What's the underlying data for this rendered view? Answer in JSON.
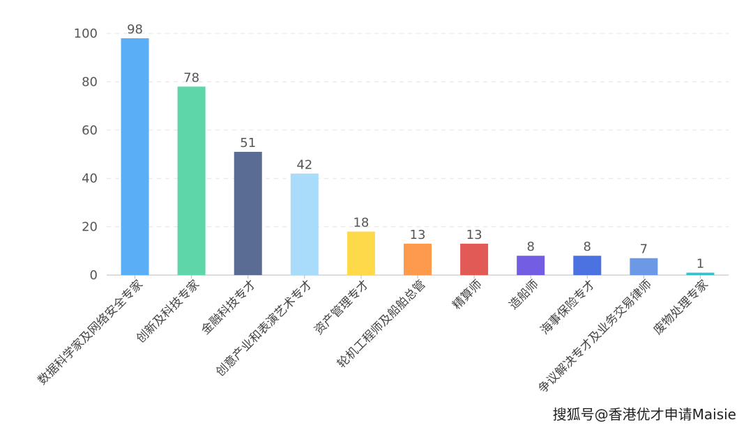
{
  "chart_data": {
    "type": "bar",
    "categories": [
      "数据科学家及网络安全专家",
      "创新及科技专家",
      "金融科技专才",
      "创意产业和表演艺术专才",
      "资产管理专才",
      "轮机工程师及船舶总管",
      "精算师",
      "造船师",
      "海事保险专才",
      "争议解决专才及业务交易律师",
      "废物处理专家"
    ],
    "values": [
      98,
      78,
      51,
      42,
      18,
      13,
      13,
      8,
      8,
      7,
      1
    ],
    "colors": [
      "#5aaef5",
      "#5fd6a9",
      "#5a6b94",
      "#a8dcfa",
      "#fed949",
      "#fd9a4e",
      "#e15a55",
      "#735ee3",
      "#4c72e2",
      "#6c99e6",
      "#3cbdca"
    ],
    "ylim": [
      0,
      100
    ],
    "yticks": [
      "0",
      "20",
      "40",
      "60",
      "80",
      "100"
    ],
    "grid": true,
    "title": "",
    "xlabel": "",
    "ylabel": ""
  },
  "watermark": "搜狐号@香港优才申请Maisie"
}
